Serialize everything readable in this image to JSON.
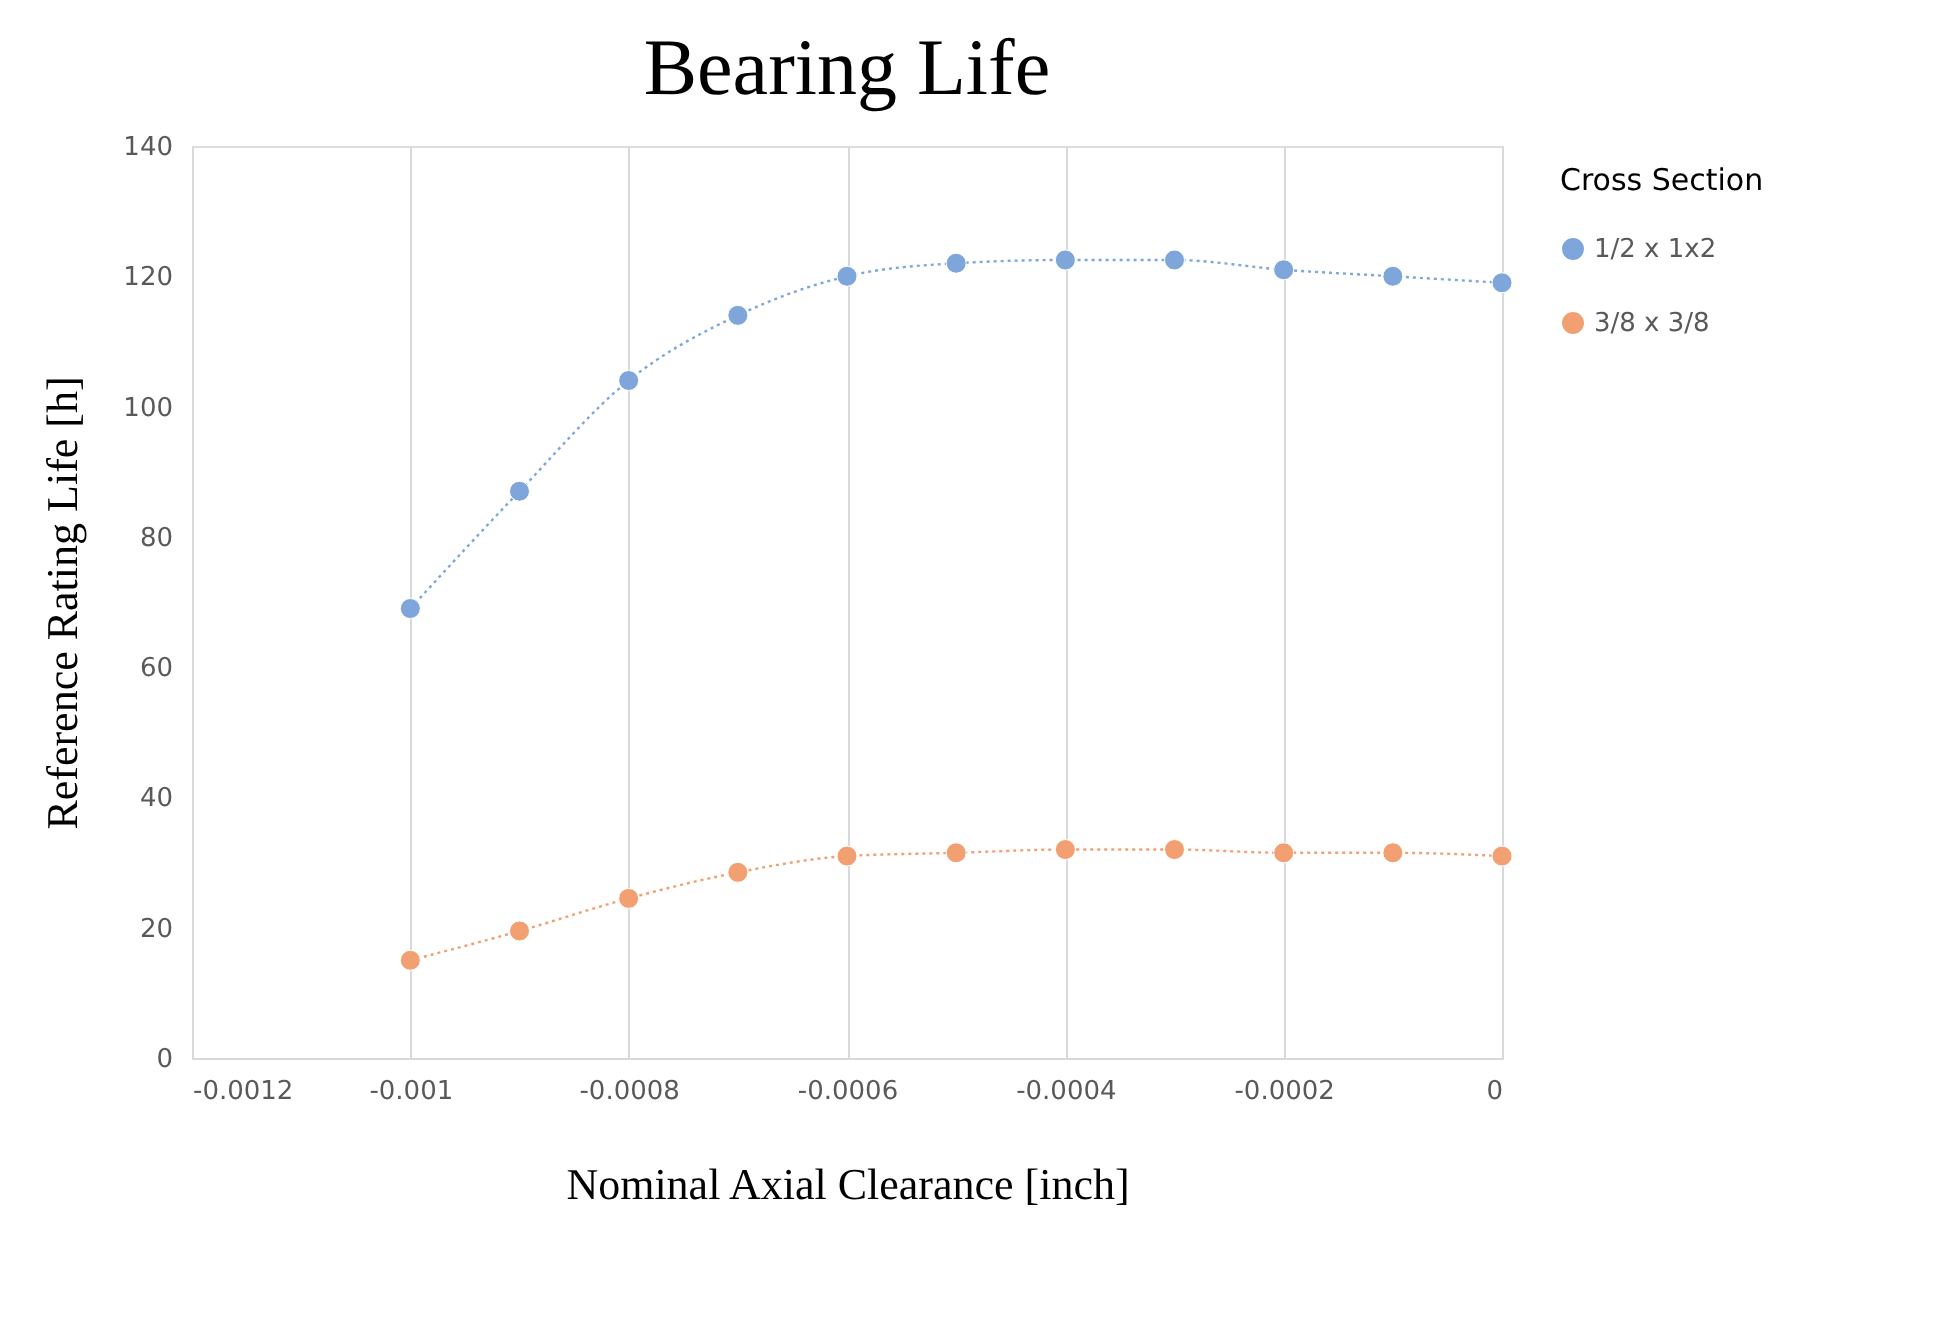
{
  "chart_data": {
    "type": "line",
    "title": "Bearing Life",
    "xlabel": "Nominal  Axial  Clearance  [inch]",
    "ylabel": "Reference  Rating  Life  [h]",
    "legend_title": "Cross Section",
    "x": [
      -0.001,
      -0.0009,
      -0.0008,
      -0.0007,
      -0.0006,
      -0.0005,
      -0.0004,
      -0.0003,
      -0.0002,
      -0.0001,
      0
    ],
    "series": [
      {
        "name": "1/2 x 1x2",
        "color": "#7ea6db",
        "values": [
          69,
          87,
          104,
          114,
          120,
          122,
          122.5,
          122.5,
          121,
          120,
          119
        ]
      },
      {
        "name": "3/8 x 3/8",
        "color": "#f2a072",
        "values": [
          15,
          19.5,
          24.5,
          28.5,
          31,
          31.5,
          32,
          32,
          31.5,
          31.5,
          31
        ]
      }
    ],
    "xlim": [
      -0.0012,
      0
    ],
    "xticks": [
      -0.0012,
      -0.001,
      -0.0008,
      -0.0006,
      -0.0004,
      -0.0002,
      0
    ],
    "ylim": [
      0,
      140
    ],
    "yticks": [
      0,
      20,
      40,
      60,
      80,
      100,
      120,
      140
    ],
    "grid": "x",
    "legend": "right",
    "marker": "circle",
    "line_style": "dotted"
  }
}
